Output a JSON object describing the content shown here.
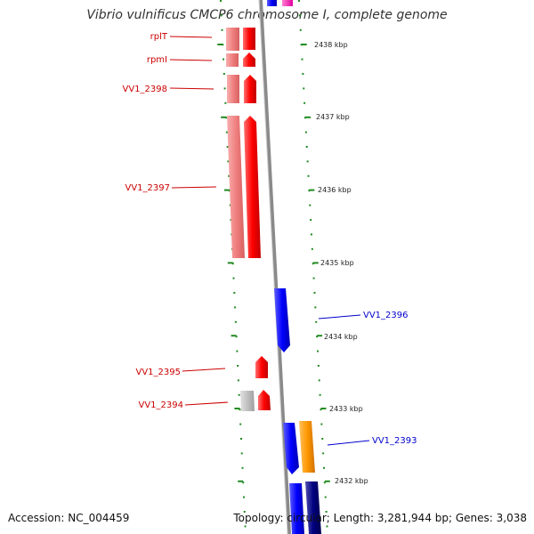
{
  "title": "Vibrio vulnificus CMCP6 chromosome I, complete genome",
  "footer": {
    "accession": "Accession: NC_004459",
    "topology": "Topology: circular; Length: 3,281,944 bp; Genes: 3,038"
  },
  "colors": {
    "forward_gene": "#ff0000",
    "forward_gene_light": "#f08080",
    "reverse_gene": "#0000ff",
    "reverse_gene_dark": "#000080",
    "orange_gene": "#ff9900",
    "grey_gene": "#c0c0c0",
    "scale_ticks": "#228b22",
    "backbone": "#888888",
    "label_forward": "#cc0000",
    "label_reverse": "#0000cc"
  },
  "scale_labels": [
    "2438 kbp",
    "2437 kbp",
    "2436 kbp",
    "2435 kbp",
    "2434 kbp",
    "2433 kbp",
    "2432 kbp"
  ],
  "gene_labels": {
    "left": [
      "rplT",
      "rpmI",
      "VV1_2398",
      "VV1_2397",
      "VV1_2395",
      "VV1_2394"
    ],
    "right": [
      "VV1_2396",
      "VV1_2393"
    ]
  }
}
